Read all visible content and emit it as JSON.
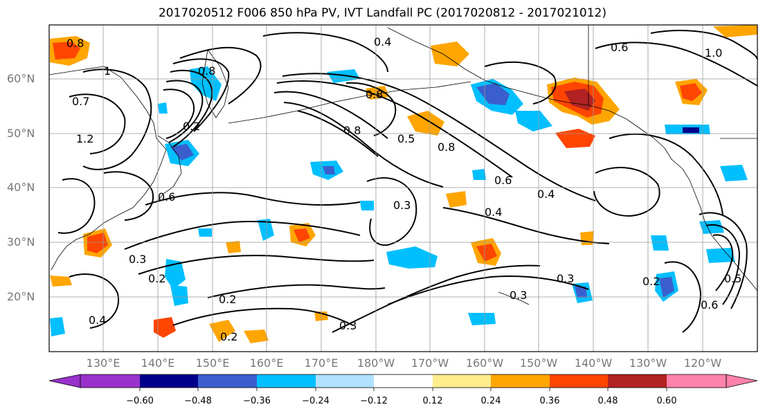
{
  "title": "2017020512 F006 850 hPa PV, IVT Landfall PC (2017020812 - 2017021012)",
  "map": {
    "lat_labels": [
      "60°N",
      "50°N",
      "40°N",
      "30°N",
      "20°N"
    ],
    "lon_labels": [
      "130°E",
      "140°E",
      "150°E",
      "160°E",
      "170°E",
      "180°W",
      "170°W",
      "160°W",
      "150°W",
      "140°W",
      "130°W",
      "120°W"
    ],
    "grid": true,
    "coastlines": true
  },
  "contour_labels": [
    "0.8",
    "0.4",
    "0.6",
    "1",
    "1.0",
    "0.7",
    "1.2",
    "0.2",
    "0.8",
    "0.5",
    "0.8",
    "0.6",
    "0.4",
    "0.3",
    "0.3",
    "0.2",
    "0.2",
    "0.4",
    "0.2",
    "0.3",
    "0.2",
    "0.3",
    "0.6",
    "0.5",
    "0.4",
    "0.3",
    "0.6",
    "0.8",
    "0.8"
  ],
  "colorbar": {
    "ticks": [
      "−0.60",
      "−0.48",
      "−0.36",
      "−0.24",
      "−0.12",
      "0.12",
      "0.24",
      "0.36",
      "0.48",
      "0.60"
    ],
    "colors": [
      "#9932cc",
      "#00008b",
      "#3a5fcd",
      "#00bfff",
      "#b0e2ff",
      "#ffffff",
      "#ffec8b",
      "#ffa500",
      "#ff4500",
      "#b22222",
      "#ff82ab"
    ],
    "extend": "both"
  }
}
